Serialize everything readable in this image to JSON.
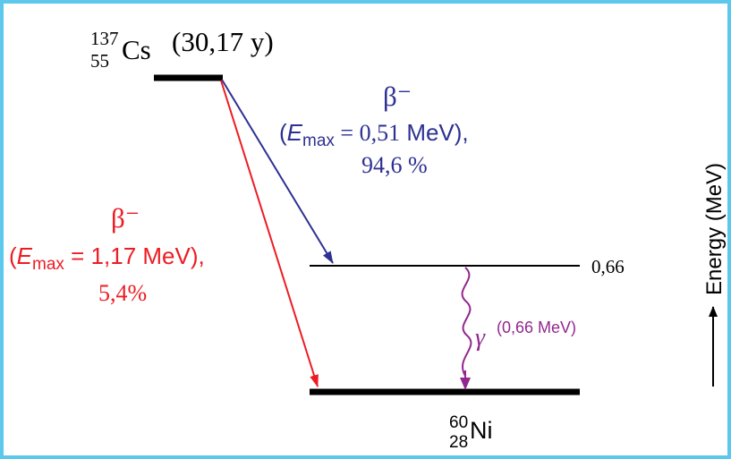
{
  "parent": {
    "mass_number": "137",
    "atomic_number": "55",
    "symbol": "Cs",
    "half_life": "(30,17 y)"
  },
  "daughter": {
    "mass_number": "60",
    "atomic_number": "28",
    "symbol": "Ni"
  },
  "excited_level": {
    "energy_label": "0,66"
  },
  "decay_blue": {
    "symbol": "β⁻",
    "open_paren": "(",
    "E": "E",
    "max_sub": "max",
    "equals_value": " = 0,51",
    "unit": " MeV),",
    "branching": "94,6 %"
  },
  "decay_red": {
    "symbol": "β⁻",
    "open_paren": "(",
    "E": "E",
    "max_sub": "max",
    "equals_value": " = 1,17 MeV),",
    "branching": "5,4%"
  },
  "gamma": {
    "symbol": "γ",
    "energy": "(0,66 MeV)"
  },
  "energy_axis": {
    "label": "Energy (MeV)"
  },
  "colors": {
    "border": "#5bc8ec",
    "blue": "#2e3192",
    "red": "#ed1c24",
    "purple": "#92278f",
    "black": "#000000"
  }
}
